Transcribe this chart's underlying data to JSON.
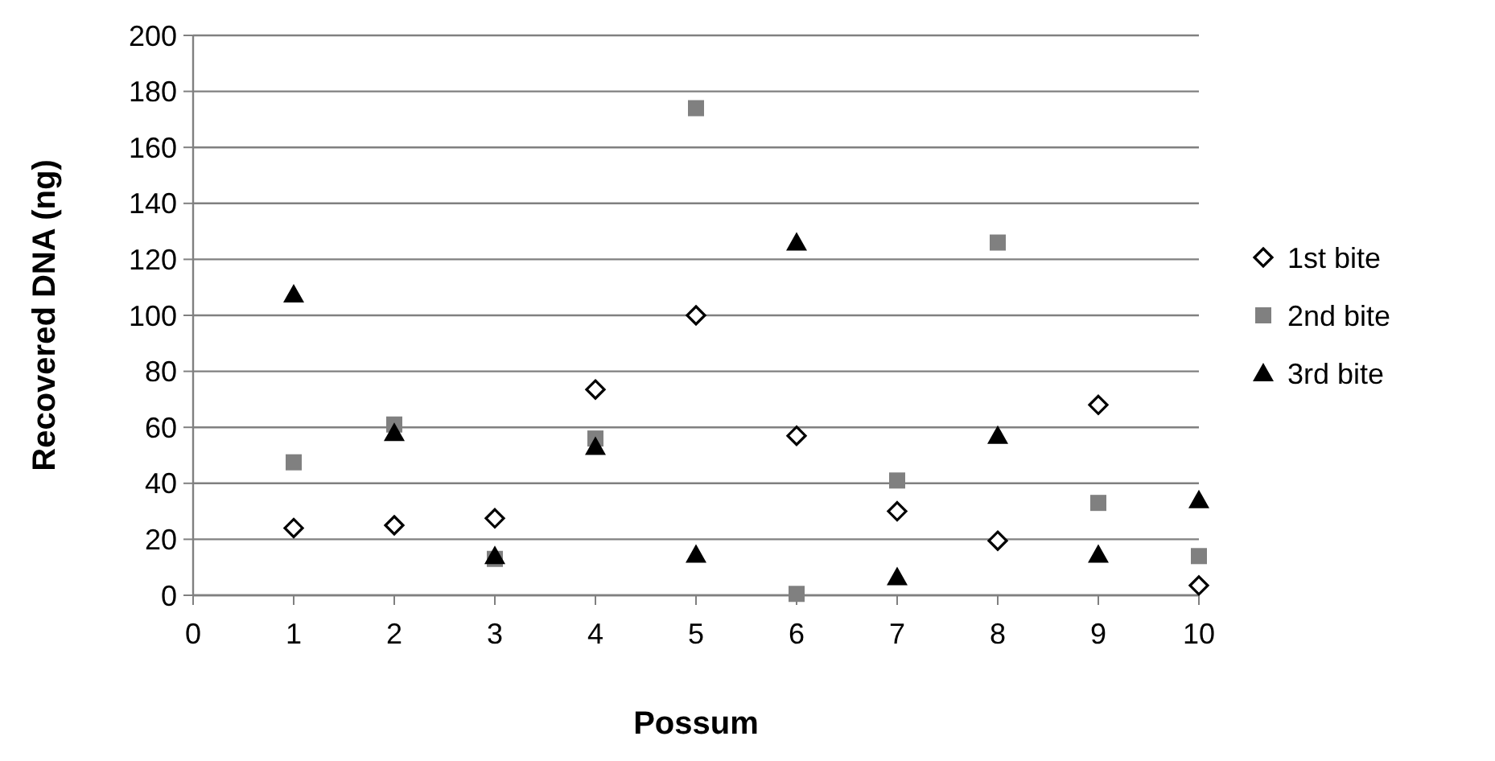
{
  "chart_data": {
    "type": "scatter",
    "xlabel": "Possum",
    "ylabel": "Recovered DNA (ng)",
    "xlim": [
      0,
      10
    ],
    "xticks": [
      0,
      1,
      2,
      3,
      4,
      5,
      6,
      7,
      8,
      9,
      10
    ],
    "ylim": [
      0,
      200
    ],
    "yticks": [
      0,
      20,
      40,
      60,
      80,
      100,
      120,
      140,
      160,
      180,
      200
    ],
    "grid": "y",
    "legend": "right",
    "series": [
      {
        "name": "1st bite",
        "color": "#000000",
        "marker": "diamond",
        "x": [
          1,
          2,
          3,
          4,
          5,
          6,
          7,
          8,
          9,
          10
        ],
        "values": [
          24,
          25,
          27.5,
          73.5,
          100,
          57,
          30,
          19.5,
          68,
          3.5
        ]
      },
      {
        "name": "2nd bite",
        "color": "#808080",
        "marker": "square",
        "x": [
          1,
          2,
          3,
          4,
          5,
          6,
          7,
          8,
          9,
          10
        ],
        "values": [
          47.5,
          61,
          13,
          56,
          174,
          0.5,
          41,
          126,
          33,
          14
        ]
      },
      {
        "name": "3rd bite",
        "color": "#000000",
        "marker": "triangle",
        "x": [
          1,
          2,
          3,
          4,
          5,
          6,
          7,
          8,
          9,
          10
        ],
        "values": [
          107.5,
          58,
          14,
          53,
          14.5,
          126,
          6.5,
          57,
          14.5,
          34
        ]
      }
    ]
  }
}
